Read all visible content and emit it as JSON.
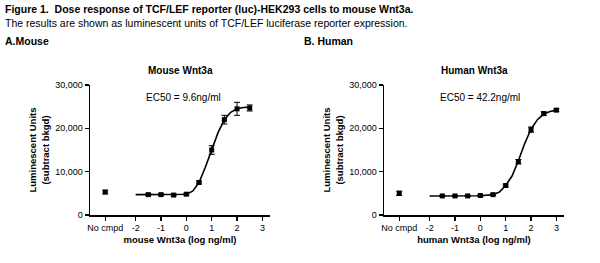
{
  "header": {
    "title": "Figure 1.  Dose response of TCF/LEF reporter (luc)-HEK293 cells to mouse Wnt3a.",
    "subtitle": "The results are shown as luminescent units of TCF/LEF luciferase reporter expression."
  },
  "chart_data": [
    {
      "type": "scatter",
      "panel": "A.Mouse",
      "title": "Mouse Wnt3a",
      "annotations": [
        "EC50 = 9.6ng/ml"
      ],
      "x_label": "mouse Wnt3a (log ng/ml)",
      "y_label": "Luminescent Units\n(subtract bkgd)",
      "xlim": [
        -3.8,
        3.3
      ],
      "xticks": [
        {
          "value": -3.2,
          "label": "No cmpd"
        },
        -2,
        -1,
        0,
        1,
        2,
        3
      ],
      "ylim": [
        0,
        30000
      ],
      "yticks": [
        0,
        {
          "value": 10000,
          "label": "10,000"
        },
        {
          "value": 20000,
          "label": "20,000"
        },
        {
          "value": 30000,
          "label": "30,000"
        }
      ],
      "grid": false,
      "color": "#000000",
      "series": [
        {
          "type": "scatter",
          "marker": "square",
          "x": [
            -3.2,
            -1.5,
            -1,
            -0.5,
            0,
            0.5,
            1,
            1.5,
            2,
            2.5
          ],
          "values": [
            5300,
            4700,
            4700,
            4600,
            4800,
            7500,
            15000,
            22000,
            24500,
            24700
          ],
          "error": [
            400,
            200,
            200,
            200,
            200,
            300,
            1000,
            1000,
            1500,
            700
          ]
        },
        {
          "type": "line",
          "line_style": "solid",
          "x": [
            -2,
            -1.5,
            -1,
            -0.5,
            0,
            0.25,
            0.5,
            0.75,
            1,
            1.25,
            1.5,
            1.75,
            2,
            2.25,
            2.5
          ],
          "values": [
            4700,
            4700,
            4700,
            4700,
            4800,
            5500,
            7500,
            11000,
            15000,
            19000,
            22000,
            23700,
            24500,
            24800,
            24900
          ]
        }
      ]
    },
    {
      "type": "scatter",
      "panel": "B. Human",
      "title": "Human Wnt3a",
      "annotations": [
        "EC50 = 42.2ng/ml"
      ],
      "x_label": "human Wnt3a (log ng/ml)",
      "y_label": "Luminescent Units\n(subtract bkgd)",
      "xlim": [
        -3.8,
        3.3
      ],
      "xticks": [
        {
          "value": -3.2,
          "label": "No cmpd"
        },
        -2,
        -1,
        0,
        1,
        2,
        3
      ],
      "ylim": [
        0,
        30000
      ],
      "yticks": [
        0,
        {
          "value": 10000,
          "label": "10,000"
        },
        {
          "value": 20000,
          "label": "20,000"
        },
        {
          "value": 30000,
          "label": "30,000"
        }
      ],
      "grid": false,
      "color": "#000000",
      "series": [
        {
          "type": "scatter",
          "marker": "square",
          "x": [
            -3.2,
            -1.5,
            -1,
            -0.5,
            0,
            0.5,
            1,
            1.5,
            2,
            2.5,
            3
          ],
          "values": [
            5000,
            4400,
            4400,
            4400,
            4500,
            4700,
            6800,
            12300,
            19700,
            23400,
            24200
          ],
          "error": [
            500,
            150,
            150,
            150,
            150,
            200,
            300,
            500,
            600,
            400,
            300
          ]
        },
        {
          "type": "line",
          "line_style": "solid",
          "x": [
            -2,
            -1.5,
            -1,
            -0.5,
            0,
            0.5,
            0.75,
            1,
            1.25,
            1.5,
            1.75,
            2,
            2.25,
            2.5,
            2.75,
            3
          ],
          "values": [
            4400,
            4400,
            4400,
            4400,
            4450,
            4700,
            5300,
            6800,
            9000,
            12500,
            16500,
            19800,
            22000,
            23300,
            23900,
            24200
          ]
        }
      ]
    }
  ]
}
